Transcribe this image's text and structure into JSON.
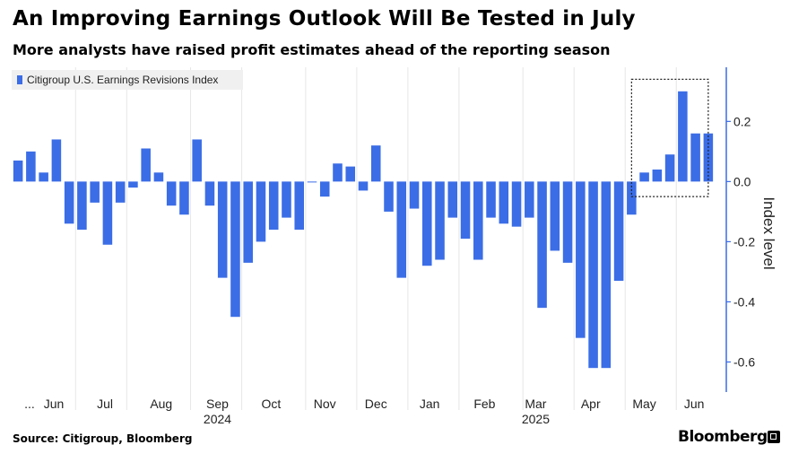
{
  "title": "An Improving Earnings Outlook Will Be Tested in July",
  "subtitle": "More analysts have raised profit estimates ahead of the reporting season",
  "source": "Source: Citigroup, Bloomberg",
  "brand": "Bloomberg",
  "colors": {
    "bar": "#3b6de6",
    "axis": "#3b6de6",
    "grid": "#e6e6e6",
    "legend_bg": "#f0f0f0"
  },
  "chart_data": {
    "type": "bar",
    "title": "An Improving Earnings Outlook Will Be Tested in July",
    "subtitle": "More analysts have raised profit estimates ahead of the reporting season",
    "ylabel": "Index level",
    "xlabel": "",
    "ylim": [
      -0.7,
      0.38
    ],
    "yticks": [
      0.2,
      0.0,
      -0.2,
      -0.4,
      -0.6
    ],
    "ytick_labels": [
      "0.2",
      "0.0",
      "-0.2",
      "-0.4",
      "-0.6"
    ],
    "grid": "vertical",
    "legend": {
      "placement": "top-left",
      "entries": [
        "Citigroup U.S. Earnings Revisions Index"
      ]
    },
    "series": [
      {
        "name": "Citigroup U.S. Earnings Revisions Index",
        "values": [
          0.07,
          0.1,
          0.03,
          0.14,
          -0.14,
          -0.16,
          -0.07,
          -0.21,
          -0.07,
          -0.02,
          0.11,
          0.03,
          -0.08,
          -0.11,
          0.14,
          -0.08,
          -0.32,
          -0.45,
          -0.27,
          -0.2,
          -0.16,
          -0.12,
          -0.16,
          0.0,
          -0.05,
          0.06,
          0.05,
          -0.03,
          0.12,
          -0.1,
          -0.32,
          -0.09,
          -0.28,
          -0.26,
          -0.12,
          -0.19,
          -0.26,
          -0.12,
          -0.14,
          -0.15,
          -0.12,
          -0.42,
          -0.23,
          -0.27,
          -0.52,
          -0.62,
          -0.62,
          -0.33,
          -0.11,
          0.03,
          0.04,
          0.09,
          0.3,
          0.16,
          0.16
        ]
      }
    ],
    "x_labels": [
      {
        "label": "...",
        "index": 0.9
      },
      {
        "label": "Jun",
        "index": 2.8
      },
      {
        "label": "Jul",
        "index": 6.8
      },
      {
        "label": "Aug",
        "index": 11.2
      },
      {
        "label": "Sep",
        "index": 15.6
      },
      {
        "label": "Oct",
        "index": 19.8
      },
      {
        "label": "Nov",
        "index": 24.0
      },
      {
        "label": "Dec",
        "index": 28.0
      },
      {
        "label": "Jan",
        "index": 32.2
      },
      {
        "label": "Feb",
        "index": 36.5
      },
      {
        "label": "Mar",
        "index": 40.5
      },
      {
        "label": "Apr",
        "index": 44.8
      },
      {
        "label": "May",
        "index": 49.0
      },
      {
        "label": "Jun",
        "index": 52.9
      }
    ],
    "year_labels": [
      {
        "label": "2024",
        "index": 15.6
      },
      {
        "label": "2025",
        "index": 40.5
      }
    ],
    "month_boundaries": [
      4.5,
      8.5,
      13.5,
      17.5,
      22.5,
      26.5,
      30.5,
      34.5,
      39.5,
      43.5,
      47.5,
      51.5
    ],
    "highlight_box": {
      "from_index": 48.5,
      "to_index": 54.5,
      "y_top": 0.34,
      "y_bottom": -0.05
    }
  }
}
